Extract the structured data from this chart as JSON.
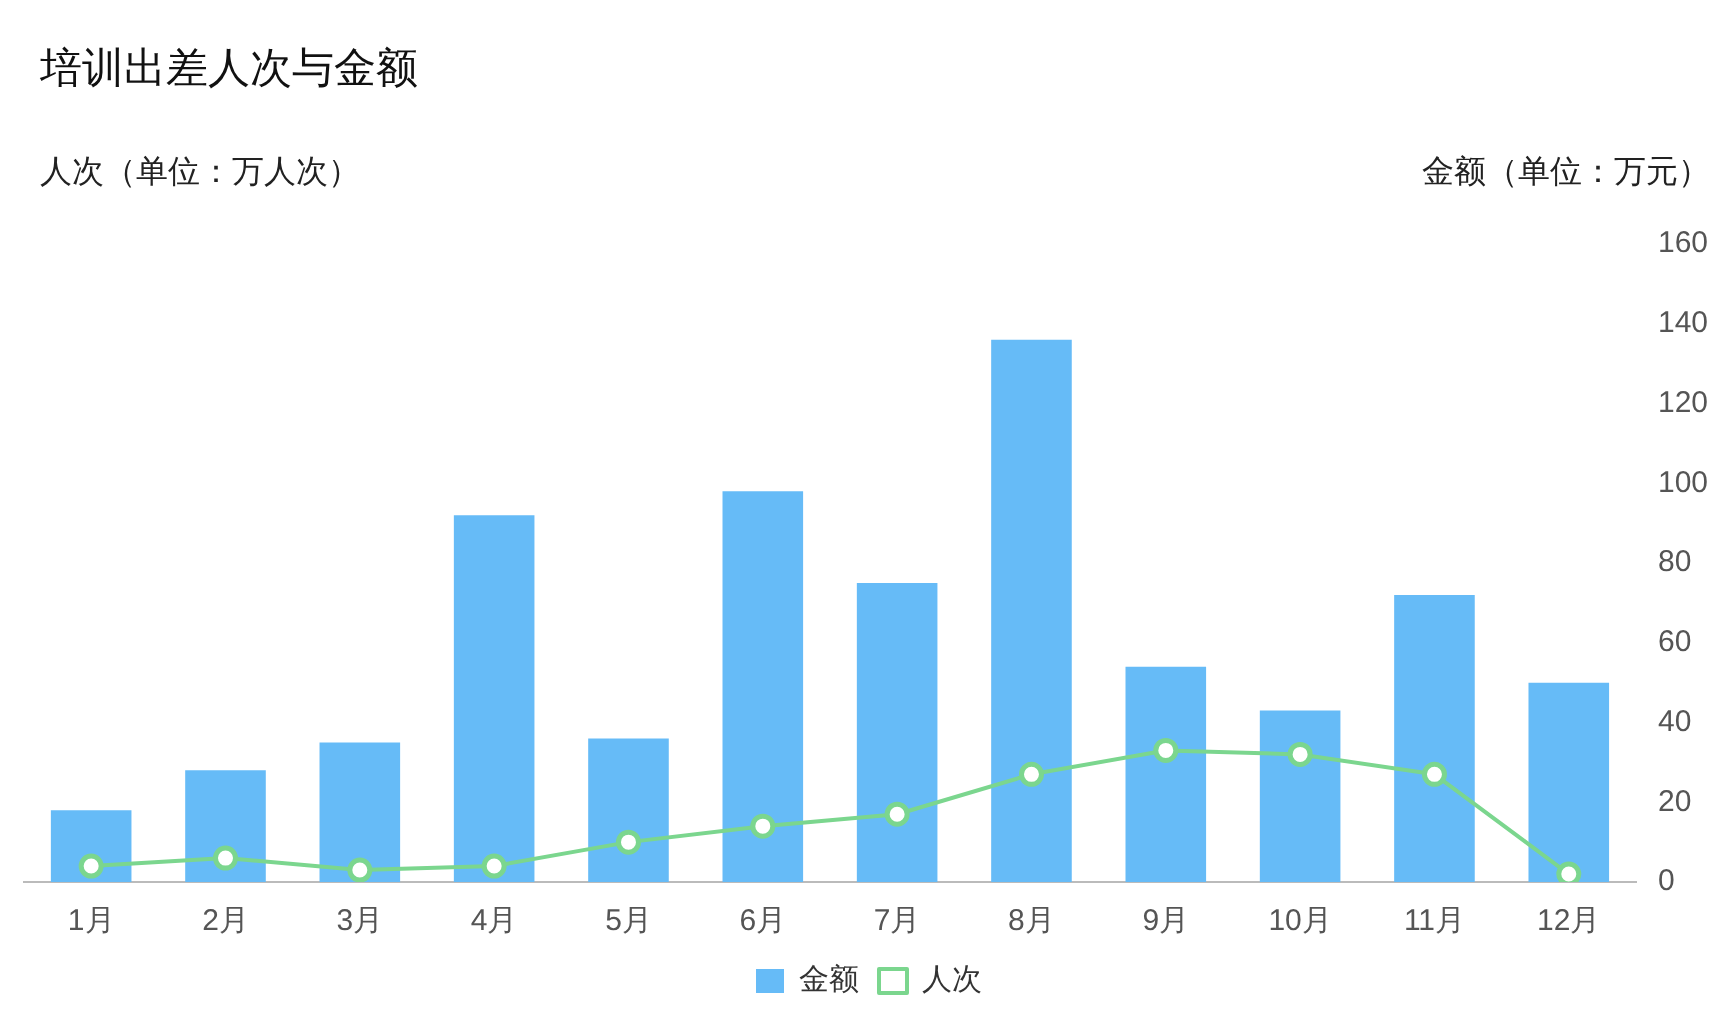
{
  "chart_data": {
    "type": "bar",
    "title": "培训出差人次与金额",
    "ylabel": "人次（单位：万人次）",
    "y2label": "金额（单位：万元）",
    "categories": [
      "1月",
      "2月",
      "3月",
      "4月",
      "5月",
      "6月",
      "7月",
      "8月",
      "9月",
      "10月",
      "11月",
      "12月"
    ],
    "series": [
      {
        "name": "金额",
        "axis": "y2",
        "color": "#66bbf7",
        "values": [
          18,
          28,
          35,
          92,
          36,
          98,
          75,
          136,
          54,
          43,
          72,
          50
        ]
      },
      {
        "name": "人次",
        "type": "line",
        "axis": "y2",
        "color": "#7bd68e",
        "marker": "circle",
        "values": [
          4,
          6,
          3,
          4,
          10,
          14,
          17,
          27,
          33,
          32,
          27,
          2
        ]
      }
    ],
    "y2lim": [
      0,
      160
    ],
    "y2ticks": [
      0,
      20,
      40,
      60,
      80,
      100,
      120,
      140,
      160
    ],
    "grid": false,
    "legend": "bottom"
  }
}
